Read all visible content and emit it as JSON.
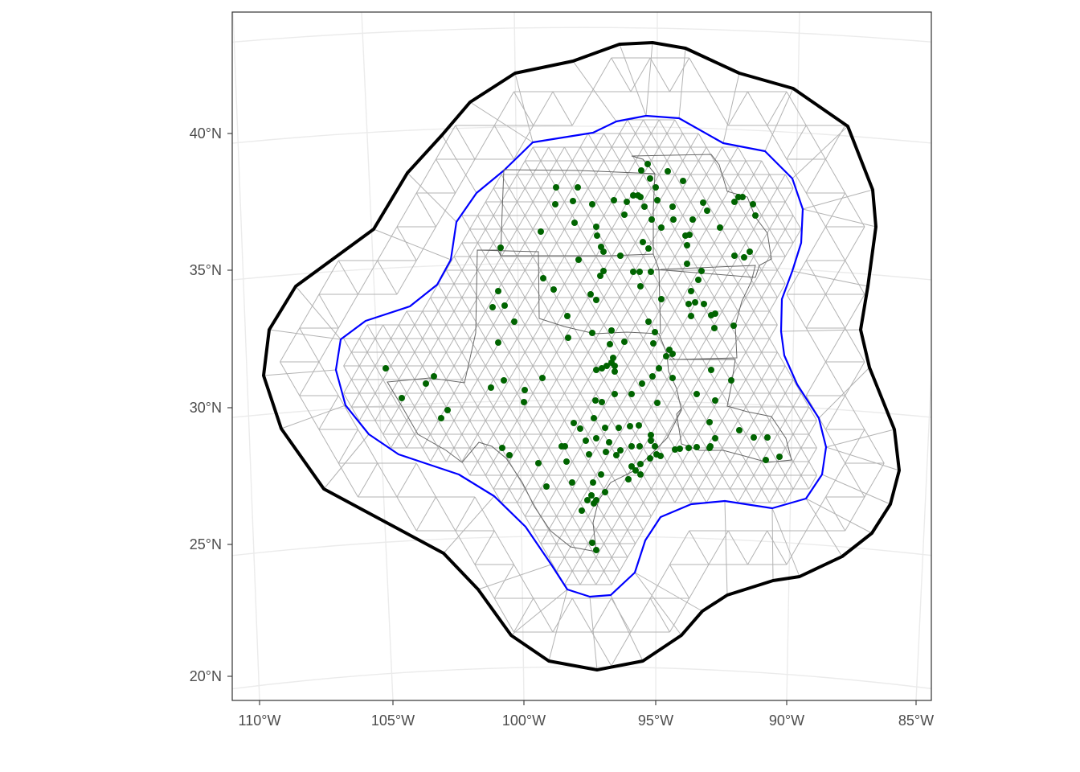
{
  "map": {
    "lat_labels": [
      "40°N",
      "35°N",
      "30°N",
      "25°N",
      "20°N"
    ],
    "lon_labels": [
      "110°W",
      "105°W",
      "100°W",
      "95°W",
      "90°W",
      "85°W"
    ],
    "colors": {
      "panel_border": "#333333",
      "graticule": "#ebebeb",
      "mesh": "#b3b3b3",
      "outer_boundary": "#000000",
      "inner_boundary": "#0000ff",
      "state_borders": "#666666",
      "stations": "#006400"
    },
    "layers": [
      "graticule",
      "triangular-mesh",
      "outer-boundary",
      "inner-boundary",
      "state-borders",
      "station-points"
    ]
  }
}
